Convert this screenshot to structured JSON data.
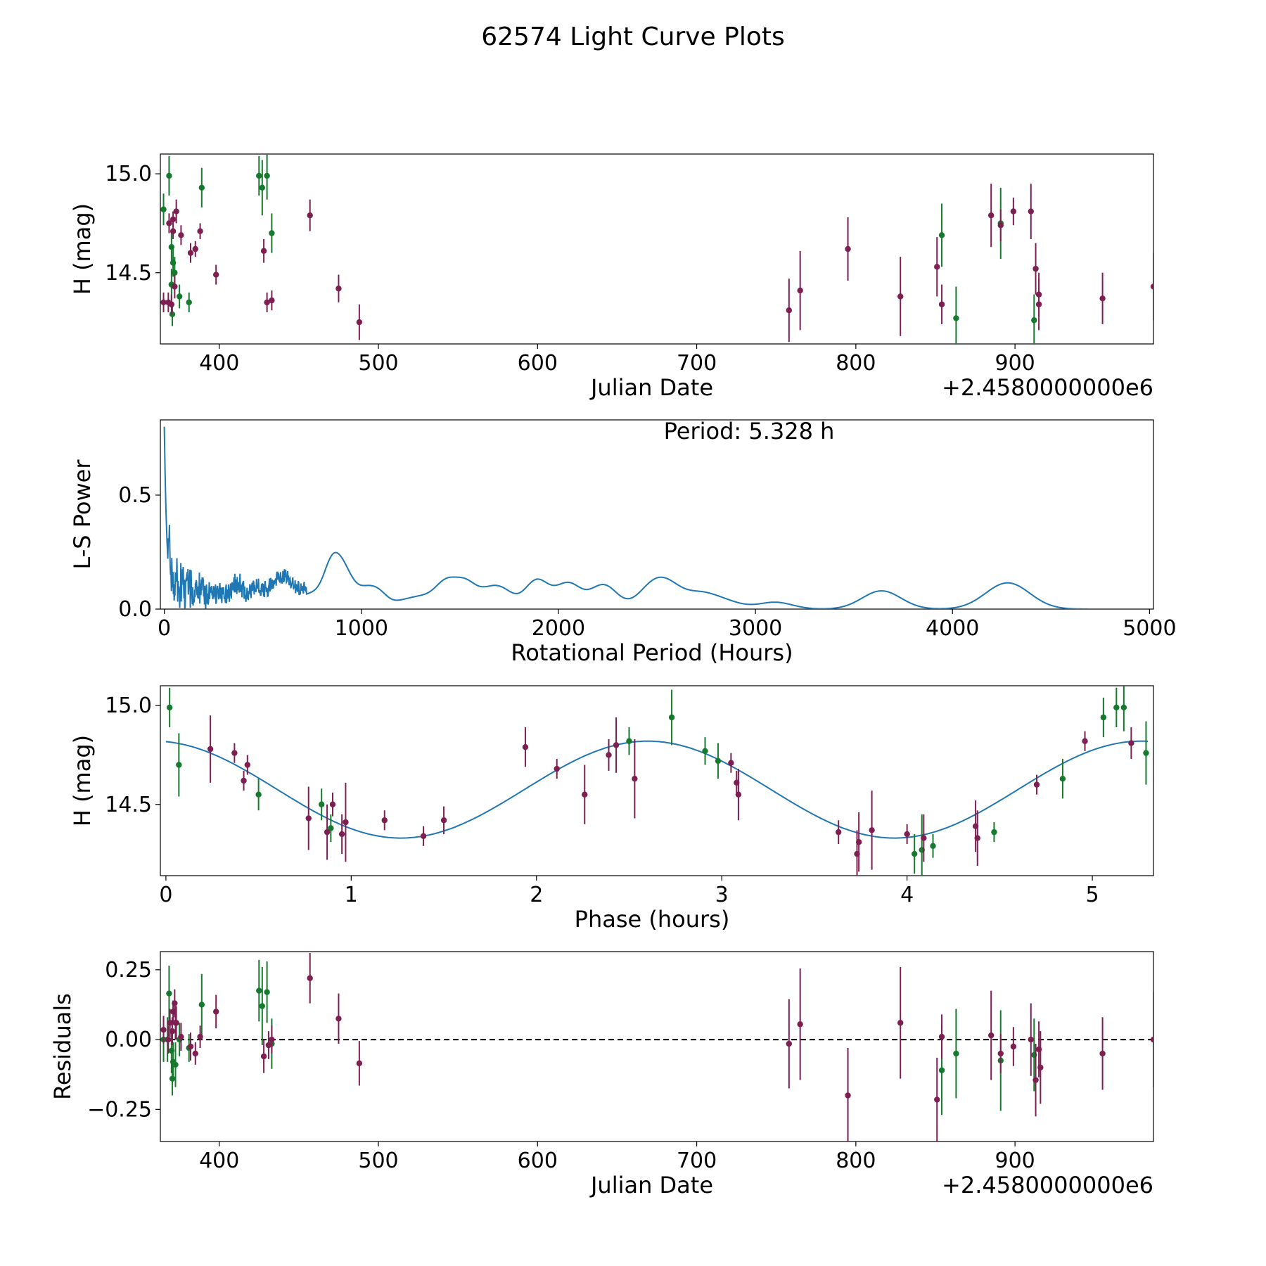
{
  "figure": {
    "title": "62574 Light Curve Plots",
    "colors": {
      "green": "#157a2d",
      "purple": "#7e1f52",
      "line": "#1f77b4",
      "axis": "#000000"
    }
  },
  "chart_data": [
    {
      "id": "lightcurve",
      "type": "scatter",
      "title": "",
      "xlabel": "Julian Date",
      "ylabel": "H (mag)",
      "offset_label": "+2.4580000000e6",
      "xlim": [
        363,
        987
      ],
      "ylim": [
        14.14,
        15.1
      ],
      "inverted_y": true,
      "xticks": [
        400,
        500,
        600,
        700,
        800,
        900
      ],
      "xtick_labels": [
        "400",
        "500",
        "600",
        "700",
        "800",
        "900"
      ],
      "yticks": [
        15.0,
        14.5
      ],
      "ytick_labels": [
        "15.0",
        "14.5"
      ],
      "series": [
        {
          "name": "green",
          "color": "#157a2d",
          "points": [
            [
              365,
              14.82,
              0.08
            ],
            [
              368.5,
              14.99,
              0.1
            ],
            [
              370,
              14.63,
              0.08
            ],
            [
              370,
              14.44,
              0.08
            ],
            [
              370.5,
              14.29,
              0.06
            ],
            [
              371,
              14.55,
              0.07
            ],
            [
              372,
              14.5,
              0.08
            ],
            [
              375,
              14.38,
              0.06
            ],
            [
              381,
              14.35,
              0.05
            ],
            [
              389,
              14.93,
              0.1
            ],
            [
              425,
              14.99,
              0.1
            ],
            [
              427,
              14.93,
              0.14
            ],
            [
              430,
              14.99,
              0.12
            ],
            [
              433,
              14.7,
              0.1
            ],
            [
              854,
              14.69,
              0.16
            ],
            [
              863,
              14.27,
              0.16
            ],
            [
              891,
              14.75,
              0.18
            ],
            [
              912,
              14.26,
              0.13
            ]
          ]
        },
        {
          "name": "purple",
          "color": "#7e1f52",
          "points": [
            [
              365,
              14.35,
              0.05
            ],
            [
              368,
              14.35,
              0.05
            ],
            [
              368.5,
              14.75,
              0.05
            ],
            [
              370,
              14.34,
              0.05
            ],
            [
              371,
              14.71,
              0.04
            ],
            [
              371,
              14.77,
              0.04
            ],
            [
              372,
              14.43,
              0.06
            ],
            [
              373,
              14.81,
              0.06
            ],
            [
              376,
              14.69,
              0.05
            ],
            [
              382,
              14.6,
              0.05
            ],
            [
              385,
              14.62,
              0.04
            ],
            [
              388,
              14.71,
              0.04
            ],
            [
              398,
              14.49,
              0.05
            ],
            [
              428,
              14.61,
              0.06
            ],
            [
              430,
              14.35,
              0.05
            ],
            [
              433,
              14.36,
              0.05
            ],
            [
              457,
              14.79,
              0.08
            ],
            [
              475,
              14.42,
              0.07
            ],
            [
              488,
              14.25,
              0.09
            ],
            [
              758,
              14.31,
              0.16
            ],
            [
              765,
              14.41,
              0.2
            ],
            [
              795,
              14.62,
              0.16
            ],
            [
              828,
              14.38,
              0.2
            ],
            [
              851,
              14.53,
              0.15
            ],
            [
              854,
              14.34,
              0.1
            ],
            [
              885,
              14.79,
              0.16
            ],
            [
              891,
              14.74,
              0.08
            ],
            [
              899,
              14.81,
              0.07
            ],
            [
              910,
              14.81,
              0.14
            ],
            [
              913,
              14.52,
              0.13
            ],
            [
              915,
              14.39,
              0.11
            ],
            [
              915,
              14.34,
              0.13
            ],
            [
              955,
              14.37,
              0.13
            ],
            [
              987,
              14.43,
              0.17
            ]
          ]
        }
      ]
    },
    {
      "id": "periodogram",
      "type": "line",
      "title": "",
      "annotation": "Period: 5.328 h",
      "xlabel": "Rotational Period (Hours)",
      "ylabel": "L-S Power",
      "xlim": [
        -20,
        5020
      ],
      "ylim": [
        0,
        0.83
      ],
      "xticks": [
        0,
        1000,
        2000,
        3000,
        4000,
        5000
      ],
      "xtick_labels": [
        "0",
        "1000",
        "2000",
        "3000",
        "4000",
        "5000"
      ],
      "yticks": [
        0,
        0.5
      ],
      "ytick_labels": [
        "0.0",
        "0.5"
      ],
      "bumps": [
        [
          370,
          0.06
        ],
        [
          470,
          0.06
        ],
        [
          560,
          0.07
        ],
        [
          620,
          0.09
        ],
        [
          700,
          0.04
        ],
        [
          760,
          0.05
        ],
        [
          835,
          0.13
        ],
        [
          880,
          0.13
        ],
        [
          930,
          0.1
        ],
        [
          1000,
          0.05
        ],
        [
          1050,
          0.05
        ],
        [
          1100,
          0.05
        ],
        [
          1200,
          0.025
        ],
        [
          1270,
          0.03
        ],
        [
          1330,
          0.03
        ],
        [
          1400,
          0.04
        ],
        [
          1440,
          0.08
        ],
        [
          1530,
          0.105
        ],
        [
          1640,
          0.06
        ],
        [
          1720,
          0.07
        ],
        [
          1890,
          0.125
        ],
        [
          2050,
          0.11
        ],
        [
          2230,
          0.105
        ],
        [
          2470,
          0.08
        ],
        [
          2560,
          0.085
        ],
        [
          2720,
          0.06
        ],
        [
          2850,
          0.03
        ],
        [
          3100,
          0.03
        ],
        [
          3640,
          0.08
        ],
        [
          4280,
          0.115
        ]
      ],
      "early": {
        "ymax": 0.8,
        "decay": 14,
        "burst_range": [
          20,
          720
        ],
        "burst_max": 0.22
      }
    },
    {
      "id": "phased",
      "type": "scatter",
      "title": "",
      "xlabel": "Phase (hours)",
      "ylabel": "H (mag)",
      "xlim": [
        -0.03,
        5.33
      ],
      "ylim": [
        14.14,
        15.1
      ],
      "inverted_y": true,
      "xticks": [
        0,
        1,
        2,
        3,
        4,
        5
      ],
      "xtick_labels": [
        "0",
        "1",
        "2",
        "3",
        "4",
        "5"
      ],
      "yticks": [
        15.0,
        14.5
      ],
      "ytick_labels": [
        "15.0",
        "14.5"
      ],
      "model": {
        "mean": 14.575,
        "amplitude": 0.245,
        "peak_phase": 2.6,
        "period": 2.664,
        "x_range": [
          0,
          5.3
        ]
      },
      "series": [
        {
          "name": "green",
          "color": "#157a2d",
          "points": [
            [
              0.02,
              14.99,
              0.1
            ],
            [
              0.07,
              14.7,
              0.16
            ],
            [
              0.5,
              14.55,
              0.08
            ],
            [
              0.84,
              14.5,
              0.08
            ],
            [
              0.89,
              14.38,
              0.07
            ],
            [
              2.5,
              14.82,
              0.07
            ],
            [
              2.73,
              14.94,
              0.14
            ],
            [
              2.91,
              14.77,
              0.07
            ],
            [
              2.98,
              14.72,
              0.09
            ],
            [
              4.04,
              14.25,
              0.1
            ],
            [
              4.08,
              14.27,
              0.18
            ],
            [
              4.14,
              14.29,
              0.06
            ],
            [
              4.47,
              14.36,
              0.05
            ],
            [
              4.84,
              14.63,
              0.1
            ],
            [
              5.06,
              14.94,
              0.1
            ],
            [
              5.13,
              14.99,
              0.1
            ],
            [
              5.17,
              14.99,
              0.12
            ],
            [
              5.29,
              14.76,
              0.16
            ]
          ]
        },
        {
          "name": "purple",
          "color": "#7e1f52",
          "points": [
            [
              0.24,
              14.78,
              0.17
            ],
            [
              0.37,
              14.76,
              0.05
            ],
            [
              0.42,
              14.62,
              0.05
            ],
            [
              0.44,
              14.7,
              0.05
            ],
            [
              0.77,
              14.43,
              0.16
            ],
            [
              0.87,
              14.36,
              0.14
            ],
            [
              0.9,
              14.5,
              0.06
            ],
            [
              0.95,
              14.35,
              0.1
            ],
            [
              0.97,
              14.41,
              0.2
            ],
            [
              1.18,
              14.42,
              0.05
            ],
            [
              1.39,
              14.34,
              0.05
            ],
            [
              1.5,
              14.42,
              0.07
            ],
            [
              1.94,
              14.79,
              0.1
            ],
            [
              2.11,
              14.68,
              0.05
            ],
            [
              2.26,
              14.55,
              0.15
            ],
            [
              2.39,
              14.75,
              0.08
            ],
            [
              2.43,
              14.8,
              0.14
            ],
            [
              2.53,
              14.63,
              0.2
            ],
            [
              3.05,
              14.71,
              0.05
            ],
            [
              3.08,
              14.61,
              0.06
            ],
            [
              3.09,
              14.55,
              0.13
            ],
            [
              3.63,
              14.36,
              0.06
            ],
            [
              3.73,
              14.25,
              0.12
            ],
            [
              3.74,
              14.31,
              0.15
            ],
            [
              3.81,
              14.37,
              0.2
            ],
            [
              4.0,
              14.35,
              0.05
            ],
            [
              4.09,
              14.33,
              0.12
            ],
            [
              4.37,
              14.39,
              0.13
            ],
            [
              4.38,
              14.33,
              0.14
            ],
            [
              4.7,
              14.6,
              0.05
            ],
            [
              4.96,
              14.82,
              0.05
            ],
            [
              5.21,
              14.81,
              0.08
            ]
          ]
        }
      ]
    },
    {
      "id": "residuals",
      "type": "scatter",
      "title": "",
      "xlabel": "Julian Date",
      "ylabel": "Residuals",
      "offset_label": "+2.4580000000e6",
      "xlim": [
        363,
        987
      ],
      "ylim": [
        -0.365,
        0.315
      ],
      "zero_line": true,
      "xticks": [
        400,
        500,
        600,
        700,
        800,
        900
      ],
      "xtick_labels": [
        "400",
        "500",
        "600",
        "700",
        "800",
        "900"
      ],
      "yticks": [
        0.25,
        0.0,
        -0.25
      ],
      "ytick_labels": [
        "0.25",
        "0.00",
        "−0.25"
      ],
      "series": [
        {
          "name": "green",
          "color": "#157a2d",
          "points": [
            [
              365,
              0.0,
              0.08
            ],
            [
              367.5,
              0.0,
              0.08
            ],
            [
              368.5,
              0.165,
              0.1
            ],
            [
              370,
              -0.04,
              0.08
            ],
            [
              370.5,
              -0.14,
              0.06
            ],
            [
              371,
              -0.08,
              0.07
            ],
            [
              372.5,
              -0.09,
              0.08
            ],
            [
              375,
              0.0,
              0.06
            ],
            [
              381,
              -0.03,
              0.05
            ],
            [
              389,
              0.125,
              0.11
            ],
            [
              425,
              0.175,
              0.11
            ],
            [
              427,
              0.12,
              0.14
            ],
            [
              430,
              0.17,
              0.11
            ],
            [
              433,
              -0.015,
              0.09
            ],
            [
              854,
              -0.11,
              0.16
            ],
            [
              863,
              -0.05,
              0.16
            ],
            [
              891,
              -0.075,
              0.18
            ],
            [
              912,
              -0.055,
              0.13
            ]
          ]
        },
        {
          "name": "purple",
          "color": "#7e1f52",
          "points": [
            [
              365,
              0.035,
              0.05
            ],
            [
              368,
              0.0,
              0.05
            ],
            [
              369,
              0.06,
              0.05
            ],
            [
              370.5,
              0.03,
              0.05
            ],
            [
              371,
              0.1,
              0.04
            ],
            [
              372,
              0.13,
              0.05
            ],
            [
              372.5,
              0.06,
              0.06
            ],
            [
              373,
              0.06,
              0.06
            ],
            [
              376,
              0.01,
              0.05
            ],
            [
              382,
              -0.025,
              0.05
            ],
            [
              385,
              -0.05,
              0.04
            ],
            [
              388,
              0.01,
              0.04
            ],
            [
              398,
              0.1,
              0.06
            ],
            [
              428,
              -0.06,
              0.06
            ],
            [
              431,
              -0.02,
              0.05
            ],
            [
              433,
              0.0,
              0.05
            ],
            [
              457,
              0.22,
              0.09
            ],
            [
              475,
              0.075,
              0.09
            ],
            [
              488,
              -0.085,
              0.08
            ],
            [
              758,
              -0.015,
              0.16
            ],
            [
              765,
              0.055,
              0.2
            ],
            [
              795,
              -0.2,
              0.17
            ],
            [
              828,
              0.06,
              0.2
            ],
            [
              851,
              -0.215,
              0.15
            ],
            [
              854,
              0.01,
              0.08
            ],
            [
              885,
              0.015,
              0.16
            ],
            [
              891,
              -0.05,
              0.07
            ],
            [
              899,
              -0.025,
              0.07
            ],
            [
              910,
              0.0,
              0.13
            ],
            [
              913,
              -0.145,
              0.13
            ],
            [
              915,
              -0.035,
              0.1
            ],
            [
              916,
              -0.1,
              0.13
            ],
            [
              955,
              -0.05,
              0.13
            ],
            [
              987,
              0.0,
              0.17
            ]
          ]
        }
      ]
    }
  ]
}
